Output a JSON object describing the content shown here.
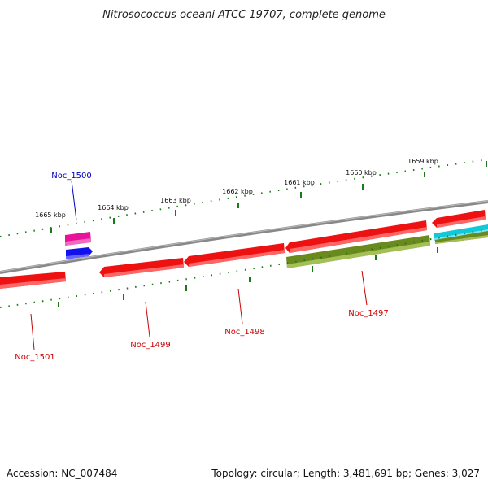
{
  "title": "Nitrosococcus oceani ATCC 19707, complete genome",
  "footer": {
    "accession": "Accession: NC_007484",
    "summary": "Topology: circular; Length: 3,481,691 bp; Genes: 3,027"
  },
  "scale": {
    "tick_labels": [
      "1665 kbp",
      "1664 kbp",
      "1663 kbp",
      "1662 kbp",
      "1661 kbp",
      "1660 kbp",
      "1659 kbp"
    ],
    "tick_color": "#1a7a1a"
  },
  "colors": {
    "backbone": "#888888",
    "gene_red": "#ee1111",
    "gene_magenta": "#e8139a",
    "gene_blue": "#1111ee",
    "gene_olive": "#6b8a1e",
    "gene_cyan": "#11c8d8",
    "label_red": "#cc0000",
    "label_blue": "#0000bb"
  },
  "genes": [
    {
      "label": "Noc_1500"
    },
    {
      "label": "Noc_1501"
    },
    {
      "label": "Noc_1499"
    },
    {
      "label": "Noc_1498"
    },
    {
      "label": "Noc_1497"
    }
  ]
}
